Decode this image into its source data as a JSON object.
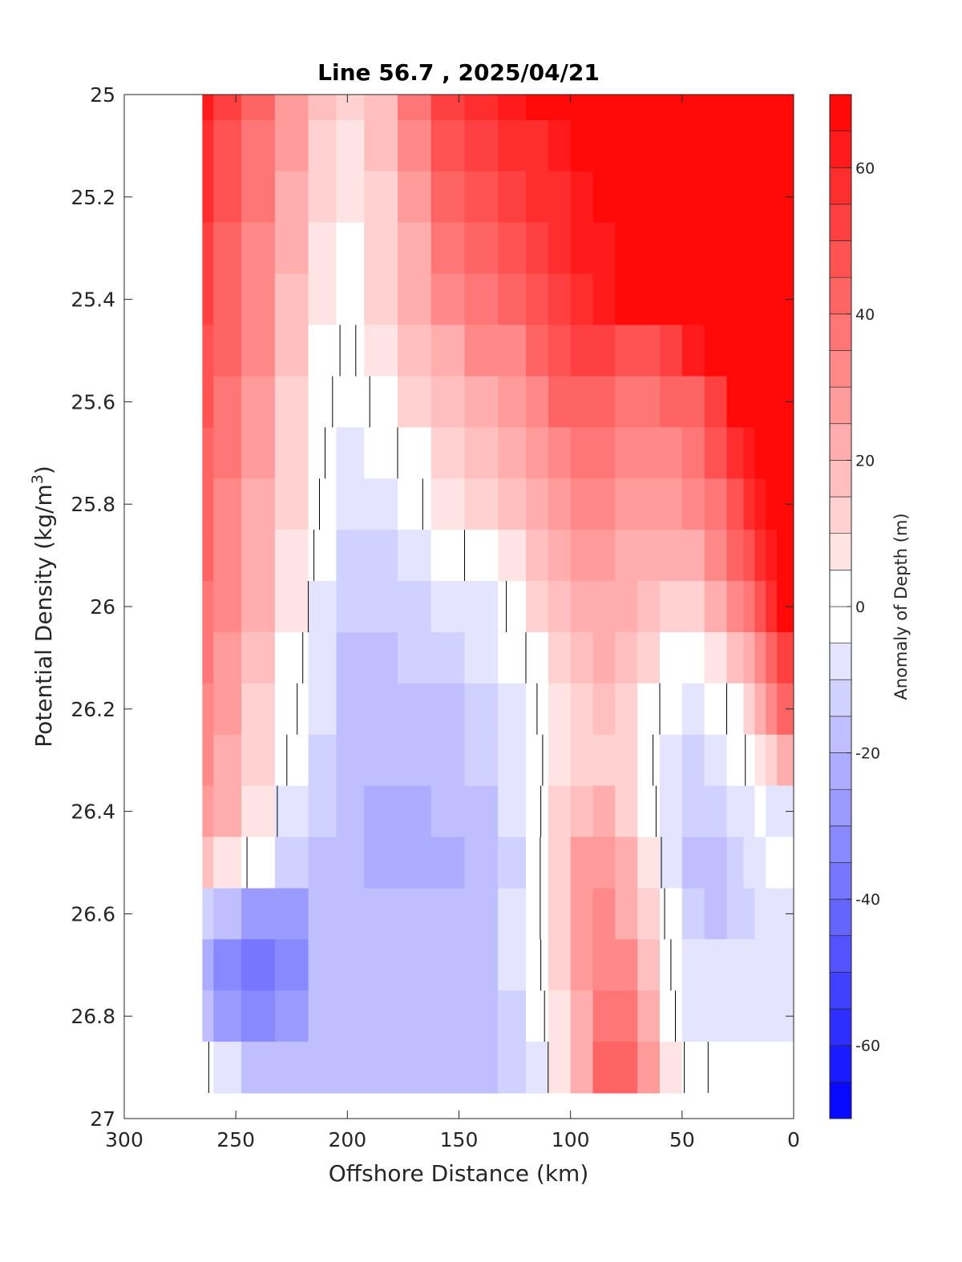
{
  "chart_data": {
    "type": "heatmap",
    "title": "Line 56.7 , 2025/04/21",
    "xlabel": "Offshore Distance (km)",
    "ylabel_main": "Potential Density (kg/m",
    "ylabel_sup": "3",
    "ylabel_close": ")",
    "colorbar_label": "Anomaly of Depth (m)",
    "xlim": [
      300,
      0
    ],
    "ylim": [
      25,
      27
    ],
    "x_reversed": true,
    "y_reversed": true,
    "xticks": [
      300,
      250,
      200,
      150,
      100,
      50,
      0
    ],
    "xtick_labels": [
      "300",
      "250",
      "200",
      "150",
      "100",
      "50",
      "0"
    ],
    "yticks": [
      25,
      25.2,
      25.4,
      25.6,
      25.8,
      26,
      26.2,
      26.4,
      26.6,
      26.8,
      27
    ],
    "ytick_labels": [
      "25",
      "25.2",
      "25.4",
      "25.6",
      "25.8",
      "26",
      "26.2",
      "26.4",
      "26.6",
      "26.8",
      "27"
    ],
    "colorbar_range": [
      -70,
      70
    ],
    "colorbar_step": 5,
    "colorbar_ticks": [
      -60,
      -40,
      -20,
      0,
      20,
      40,
      60
    ],
    "colorbar_tick_labels": [
      "-60",
      "-40",
      "-20",
      "0",
      "20",
      "40",
      "60"
    ],
    "colormap": {
      "negative": "#0000ff",
      "zero": "#ffffff",
      "positive": "#ff0000"
    },
    "contour_lines": [
      0
    ],
    "density_levels": [
      25.0,
      25.1,
      25.2,
      25.3,
      25.4,
      25.5,
      25.6,
      25.7,
      25.8,
      25.9,
      26.0,
      26.1,
      26.2,
      26.3,
      26.4,
      26.5,
      26.6,
      26.7,
      26.8,
      26.9
    ],
    "stations_km": [
      265,
      255,
      240,
      225,
      210,
      200,
      185,
      170,
      155,
      140,
      125,
      115,
      105,
      95,
      85,
      75,
      65,
      55,
      45,
      35,
      25,
      20,
      15,
      10,
      5
    ],
    "values": [
      [
        62,
        50,
        40,
        28,
        15,
        10,
        18,
        35,
        50,
        58,
        62,
        65,
        70,
        70,
        70,
        70,
        70,
        70,
        70,
        70,
        70,
        70,
        70,
        70,
        70
      ],
      [
        58,
        48,
        38,
        26,
        12,
        8,
        16,
        32,
        46,
        52,
        55,
        58,
        62,
        65,
        67,
        70,
        70,
        70,
        70,
        70,
        70,
        70,
        70,
        70,
        70
      ],
      [
        55,
        46,
        36,
        24,
        10,
        6,
        14,
        28,
        40,
        48,
        52,
        55,
        58,
        62,
        66,
        70,
        70,
        70,
        70,
        70,
        70,
        70,
        70,
        70,
        70
      ],
      [
        52,
        44,
        34,
        20,
        8,
        4,
        12,
        24,
        36,
        42,
        48,
        52,
        56,
        60,
        64,
        68,
        70,
        70,
        70,
        70,
        70,
        70,
        70,
        70,
        70
      ],
      [
        50,
        42,
        32,
        18,
        6,
        2,
        10,
        20,
        30,
        36,
        40,
        46,
        52,
        58,
        62,
        66,
        70,
        70,
        70,
        70,
        70,
        70,
        70,
        70,
        70
      ],
      [
        48,
        40,
        30,
        16,
        4,
        -2,
        6,
        16,
        24,
        30,
        34,
        40,
        46,
        52,
        50,
        46,
        48,
        52,
        60,
        70,
        70,
        70,
        70,
        70,
        70
      ],
      [
        46,
        38,
        28,
        14,
        2,
        -4,
        2,
        12,
        18,
        24,
        28,
        34,
        40,
        44,
        42,
        38,
        38,
        40,
        44,
        54,
        65,
        70,
        70,
        70,
        70
      ],
      [
        44,
        36,
        26,
        12,
        0,
        -8,
        -4,
        4,
        12,
        18,
        22,
        28,
        34,
        38,
        36,
        32,
        32,
        34,
        38,
        46,
        56,
        64,
        70,
        70,
        70
      ],
      [
        42,
        34,
        24,
        10,
        -2,
        -10,
        -8,
        -2,
        6,
        12,
        16,
        22,
        28,
        32,
        32,
        28,
        26,
        28,
        30,
        38,
        48,
        56,
        64,
        70,
        70
      ],
      [
        40,
        32,
        22,
        8,
        -4,
        -12,
        -12,
        -8,
        -2,
        2,
        8,
        16,
        22,
        26,
        28,
        24,
        20,
        22,
        24,
        30,
        40,
        48,
        56,
        64,
        70
      ],
      [
        38,
        30,
        20,
        6,
        -6,
        -14,
        -14,
        -12,
        -10,
        -6,
        2,
        10,
        18,
        22,
        24,
        20,
        16,
        14,
        14,
        20,
        30,
        38,
        46,
        56,
        65
      ],
      [
        36,
        28,
        18,
        4,
        -8,
        -16,
        -16,
        -15,
        -14,
        -10,
        -4,
        4,
        12,
        18,
        20,
        16,
        10,
        4,
        2,
        6,
        16,
        24,
        34,
        44,
        54
      ],
      [
        34,
        26,
        14,
        2,
        -10,
        -16,
        -18,
        -18,
        -16,
        -12,
        -6,
        0,
        8,
        14,
        16,
        12,
        4,
        -4,
        -6,
        -4,
        4,
        12,
        20,
        30,
        40
      ],
      [
        32,
        24,
        12,
        -2,
        -12,
        -18,
        -20,
        -20,
        -18,
        -14,
        -8,
        -2,
        6,
        12,
        14,
        10,
        2,
        -8,
        -12,
        -10,
        -4,
        2,
        8,
        14,
        22
      ],
      [
        28,
        20,
        8,
        -6,
        -14,
        -18,
        -22,
        -22,
        -20,
        -16,
        -10,
        -2,
        10,
        18,
        20,
        14,
        4,
        -8,
        -14,
        -14,
        -10,
        -6,
        -4,
        -6,
        -8
      ],
      [
        16,
        8,
        -4,
        -12,
        -16,
        -18,
        -22,
        -22,
        -22,
        -18,
        -12,
        -2,
        12,
        26,
        28,
        20,
        8,
        -6,
        -16,
        -18,
        -14,
        -10,
        -6,
        -4,
        -2
      ],
      [
        -12,
        -20,
        -28,
        -26,
        -18,
        -16,
        -20,
        -20,
        -20,
        -16,
        -10,
        -2,
        12,
        28,
        30,
        22,
        10,
        -4,
        -14,
        -16,
        -14,
        -12,
        -10,
        -8,
        -6
      ],
      [
        -24,
        -32,
        -40,
        -32,
        -20,
        -16,
        -20,
        -20,
        -20,
        -18,
        -10,
        -2,
        10,
        26,
        34,
        30,
        16,
        0,
        -10,
        -10,
        -10,
        -10,
        -10,
        -10,
        -10
      ],
      [
        -18,
        -26,
        -32,
        -26,
        -20,
        -18,
        -20,
        -20,
        -20,
        -18,
        -12,
        -4,
        8,
        24,
        38,
        38,
        22,
        2,
        -8,
        -6,
        -8,
        -8,
        -8,
        -8,
        -8
      ],
      [
        4,
        -10,
        -18,
        -20,
        -20,
        -20,
        -20,
        -20,
        -20,
        -18,
        -14,
        -6,
        6,
        22,
        40,
        44,
        28,
        6,
        -4,
        2,
        2,
        2,
        2,
        2,
        2
      ]
    ]
  }
}
